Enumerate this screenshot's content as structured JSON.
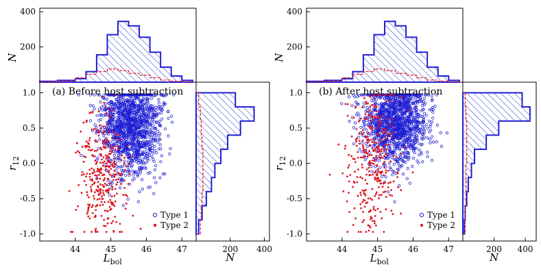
{
  "colors": {
    "type1": "#1f1fd4",
    "type2": "#e0141e",
    "hatch": "#2233cc"
  },
  "labels": {
    "xlabel_main": "L",
    "xlabel_sub": "bol",
    "ylabel_main": "r",
    "ylabel_sub": "12",
    "hist_ylabel": "N",
    "hist_xlabel": "N",
    "legend_type1": "Type 1",
    "legend_type2": "Type 2"
  },
  "chart_data": [
    {
      "type": "scatter",
      "title": "(a) Before host subtraction",
      "xlabel": "L_bol",
      "ylabel": "r_12",
      "xlim": [
        43.0,
        47.4
      ],
      "ylim": [
        -1.1,
        1.15
      ],
      "xticks": [
        44,
        45,
        46,
        47
      ],
      "yticks": [
        -1.0,
        -0.5,
        0.0,
        0.5,
        1.0
      ],
      "series": [
        {
          "name": "Type 1",
          "marker": "open circle",
          "center": [
            45.55,
            0.55
          ],
          "spread": [
            0.42,
            0.35
          ],
          "count": 1400,
          "seed": 11
        },
        {
          "name": "Type 2",
          "marker": "filled dot",
          "center": [
            44.75,
            -0.2
          ],
          "spread": [
            0.32,
            0.45
          ],
          "count": 330,
          "seed": 23
        }
      ],
      "hist_top": {
        "ylim": [
          0,
          420
        ],
        "yticks": [
          200,
          400
        ],
        "bin_edges": [
          43.0,
          43.5,
          44.0,
          44.3,
          44.6,
          44.9,
          45.2,
          45.5,
          45.8,
          46.1,
          46.4,
          46.7,
          47.0,
          47.3
        ],
        "type1": [
          5,
          10,
          20,
          60,
          155,
          270,
          345,
          320,
          255,
          170,
          85,
          35,
          10
        ],
        "type2": [
          2,
          5,
          25,
          45,
          60,
          75,
          65,
          50,
          40,
          25,
          12,
          5,
          2
        ]
      },
      "hist_right": {
        "xlim": [
          0,
          430
        ],
        "xticks": [
          200,
          400
        ],
        "bin_edges": [
          -1.0,
          -0.8,
          -0.6,
          -0.4,
          -0.2,
          0.0,
          0.2,
          0.4,
          0.6,
          0.8,
          1.0
        ],
        "type1": [
          15,
          35,
          60,
          90,
          110,
          145,
          185,
          260,
          340,
          230
        ],
        "type2": [
          25,
          30,
          35,
          40,
          40,
          40,
          35,
          30,
          25,
          15
        ]
      }
    },
    {
      "type": "scatter",
      "title": "(b) After host subtraction",
      "xlabel": "L_bol",
      "ylabel": "r_12",
      "xlim": [
        43.0,
        47.4
      ],
      "ylim": [
        -1.1,
        1.15
      ],
      "xticks": [
        44,
        45,
        46,
        47
      ],
      "yticks": [
        -1.0,
        -0.5,
        0.0,
        0.5,
        1.0
      ],
      "series": [
        {
          "name": "Type 1",
          "marker": "open circle",
          "center": [
            45.5,
            0.62
          ],
          "spread": [
            0.45,
            0.32
          ],
          "count": 1400,
          "seed": 37
        },
        {
          "name": "Type 2",
          "marker": "filled dot",
          "center": [
            44.85,
            0.05
          ],
          "spread": [
            0.35,
            0.5
          ],
          "count": 330,
          "seed": 53
        }
      ],
      "hist_top": {
        "ylim": [
          0,
          420
        ],
        "yticks": [
          200,
          400
        ],
        "bin_edges": [
          43.0,
          43.5,
          44.0,
          44.3,
          44.6,
          44.9,
          45.2,
          45.5,
          45.8,
          46.1,
          46.4,
          46.7,
          47.0,
          47.3
        ],
        "type1": [
          5,
          10,
          20,
          60,
          155,
          270,
          345,
          320,
          255,
          170,
          85,
          35,
          10
        ],
        "type2": [
          2,
          5,
          25,
          45,
          60,
          75,
          65,
          50,
          40,
          25,
          12,
          5,
          2
        ]
      },
      "hist_right": {
        "xlim": [
          0,
          470
        ],
        "xticks": [
          200,
          400
        ],
        "bin_edges": [
          -1.0,
          -0.8,
          -0.6,
          -0.4,
          -0.2,
          0.0,
          0.2,
          0.4,
          0.6,
          0.8,
          1.0
        ],
        "type1": [
          10,
          15,
          25,
          35,
          55,
          75,
          150,
          230,
          430,
          380
        ],
        "type2": [
          15,
          15,
          20,
          20,
          20,
          25,
          25,
          25,
          20,
          15
        ]
      }
    }
  ]
}
